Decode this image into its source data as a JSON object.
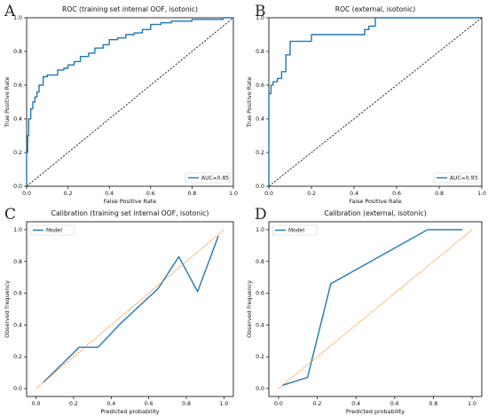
{
  "figure": {
    "background": "#ffffff",
    "colors": {
      "model_line": "#1f77b4",
      "chance_line": "#000000",
      "calib_diag": "#ff7f0e",
      "axis": "#000000"
    }
  },
  "chart_data": [
    {
      "panel": "A",
      "type": "line",
      "title": "ROC (training set internal OOF, isotonic)",
      "xlabel": "False Positive Rate",
      "ylabel": "True Positive Rate",
      "xlim": [
        0,
        1
      ],
      "ylim": [
        0,
        1
      ],
      "xticks": [
        "0.0",
        "0.2",
        "0.4",
        "0.6",
        "0.8",
        "1.0"
      ],
      "yticks": [
        "0.0",
        "0.2",
        "0.4",
        "0.6",
        "0.8",
        "1.0"
      ],
      "legend": {
        "position": "lower-right",
        "entries": [
          "AUC=0.85"
        ]
      },
      "series": [
        {
          "name": "AUC=0.85",
          "style": "solid",
          "x": [
            0,
            0,
            0.005,
            0.005,
            0.01,
            0.01,
            0.02,
            0.02,
            0.03,
            0.03,
            0.04,
            0.04,
            0.05,
            0.05,
            0.06,
            0.06,
            0.08,
            0.08,
            0.1,
            0.1,
            0.12,
            0.12,
            0.15,
            0.15,
            0.18,
            0.18,
            0.2,
            0.2,
            0.23,
            0.23,
            0.26,
            0.26,
            0.3,
            0.3,
            0.33,
            0.33,
            0.37,
            0.37,
            0.4,
            0.4,
            0.44,
            0.44,
            0.48,
            0.48,
            0.52,
            0.52,
            0.56,
            0.56,
            0.6,
            0.6,
            0.65,
            0.65,
            0.7,
            0.7,
            0.75,
            0.75,
            0.8,
            0.8,
            0.85,
            0.85,
            0.9,
            0.9,
            0.95,
            0.95,
            1.0
          ],
          "y": [
            0,
            0.2,
            0.2,
            0.3,
            0.3,
            0.4,
            0.4,
            0.46,
            0.46,
            0.5,
            0.5,
            0.53,
            0.53,
            0.56,
            0.56,
            0.6,
            0.6,
            0.65,
            0.65,
            0.66,
            0.66,
            0.66,
            0.66,
            0.69,
            0.69,
            0.7,
            0.7,
            0.72,
            0.72,
            0.74,
            0.74,
            0.77,
            0.77,
            0.79,
            0.79,
            0.82,
            0.82,
            0.84,
            0.84,
            0.87,
            0.87,
            0.88,
            0.88,
            0.9,
            0.9,
            0.91,
            0.91,
            0.93,
            0.93,
            0.96,
            0.96,
            0.97,
            0.97,
            0.98,
            0.98,
            0.98,
            0.98,
            0.99,
            0.99,
            0.99,
            0.99,
            0.99,
            0.99,
            1.0,
            1.0
          ]
        },
        {
          "name": "",
          "style": "dashed",
          "x": [
            0,
            1
          ],
          "y": [
            0,
            1
          ]
        }
      ]
    },
    {
      "panel": "B",
      "type": "line",
      "title": "ROC (external, isotonic)",
      "xlabel": "False Positive Rate",
      "ylabel": "True Positive Rate",
      "xlim": [
        0,
        1
      ],
      "ylim": [
        0,
        1
      ],
      "xticks": [
        "0.0",
        "0.2",
        "0.4",
        "0.6",
        "0.8",
        "1.0"
      ],
      "yticks": [
        "0.0",
        "0.2",
        "0.4",
        "0.6",
        "0.8",
        "1.0"
      ],
      "legend": {
        "position": "lower-right",
        "entries": [
          "AUC=0.93"
        ]
      },
      "series": [
        {
          "name": "AUC=0.93",
          "style": "solid",
          "x": [
            0,
            0,
            0.01,
            0.01,
            0.02,
            0.02,
            0.04,
            0.04,
            0.06,
            0.06,
            0.08,
            0.08,
            0.1,
            0.1,
            0.17,
            0.17,
            0.2,
            0.2,
            0.45,
            0.45,
            0.47,
            0.47,
            0.5,
            0.5,
            1.0
          ],
          "y": [
            0,
            0.55,
            0.55,
            0.6,
            0.6,
            0.62,
            0.62,
            0.64,
            0.64,
            0.68,
            0.68,
            0.78,
            0.78,
            0.86,
            0.86,
            0.86,
            0.86,
            0.9,
            0.9,
            0.93,
            0.93,
            0.95,
            0.95,
            1.0,
            1.0
          ]
        },
        {
          "name": "",
          "style": "dashed",
          "x": [
            0,
            1
          ],
          "y": [
            0,
            1
          ]
        }
      ]
    },
    {
      "panel": "C",
      "type": "line",
      "title": "Calibration (training set internal OOF, isotonic)",
      "xlabel": "Predicted probability",
      "ylabel": "Observed frequency",
      "xlim": [
        -0.05,
        1.05
      ],
      "ylim": [
        -0.05,
        1.05
      ],
      "xticks": [
        "0.0",
        "0.2",
        "0.4",
        "0.6",
        "0.8",
        "1.0"
      ],
      "yticks": [
        "0.0",
        "0.2",
        "0.4",
        "0.6",
        "0.8",
        "1.0"
      ],
      "legend": {
        "position": "top-left",
        "entries": [
          "Model"
        ]
      },
      "series": [
        {
          "name": "Model",
          "style": "solid",
          "x": [
            0.04,
            0.23,
            0.33,
            0.45,
            0.65,
            0.76,
            0.86,
            0.97
          ],
          "y": [
            0.04,
            0.26,
            0.26,
            0.41,
            0.63,
            0.83,
            0.61,
            0.96
          ]
        },
        {
          "name": "",
          "style": "dotted",
          "x": [
            0,
            1
          ],
          "y": [
            0,
            1
          ]
        }
      ]
    },
    {
      "panel": "D",
      "type": "line",
      "title": "Calibration (external, isotonic)",
      "xlabel": "Predicted probability",
      "ylabel": "Observed frequency",
      "xlim": [
        -0.05,
        1.05
      ],
      "ylim": [
        -0.05,
        1.05
      ],
      "xticks": [
        "0.0",
        "0.2",
        "0.4",
        "0.6",
        "0.8",
        "1.0"
      ],
      "yticks": [
        "0.0",
        "0.2",
        "0.4",
        "0.6",
        "0.8",
        "1.0"
      ],
      "legend": {
        "position": "top-left",
        "entries": [
          "Model"
        ]
      },
      "series": [
        {
          "name": "Model",
          "style": "solid",
          "x": [
            0.02,
            0.15,
            0.27,
            0.77,
            0.95
          ],
          "y": [
            0.02,
            0.07,
            0.66,
            1.0,
            1.0
          ]
        },
        {
          "name": "",
          "style": "dotted",
          "x": [
            0,
            1
          ],
          "y": [
            0,
            1
          ]
        }
      ]
    }
  ]
}
